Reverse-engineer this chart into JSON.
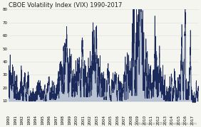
{
  "title": "CBOE Volatility Index (VIX) 1990-2017",
  "xlim_start": 1990,
  "xlim_end": 2017.9,
  "ylim": [
    0,
    80
  ],
  "yticks": [
    10,
    20,
    30,
    40,
    50,
    60,
    70,
    80
  ],
  "line_color": "#1b2a5a",
  "fill_color": "#8899bb",
  "background_color": "#f5f5f0",
  "plot_bg_color": "#f5f5f0",
  "grid_color": "#dddddd",
  "title_fontsize": 6.0,
  "tick_fontsize": 4.0,
  "source_text": "Data source: CBOE - www.cboe.com",
  "source_fontsize": 3.5,
  "xtick_years": [
    1990,
    1991,
    1992,
    1993,
    1994,
    1995,
    1996,
    1997,
    1998,
    1999,
    2000,
    2001,
    2002,
    2003,
    2004,
    2005,
    2006,
    2007,
    2008,
    2009,
    2010,
    2011,
    2012,
    2013,
    2014,
    2015,
    2016,
    2017
  ]
}
